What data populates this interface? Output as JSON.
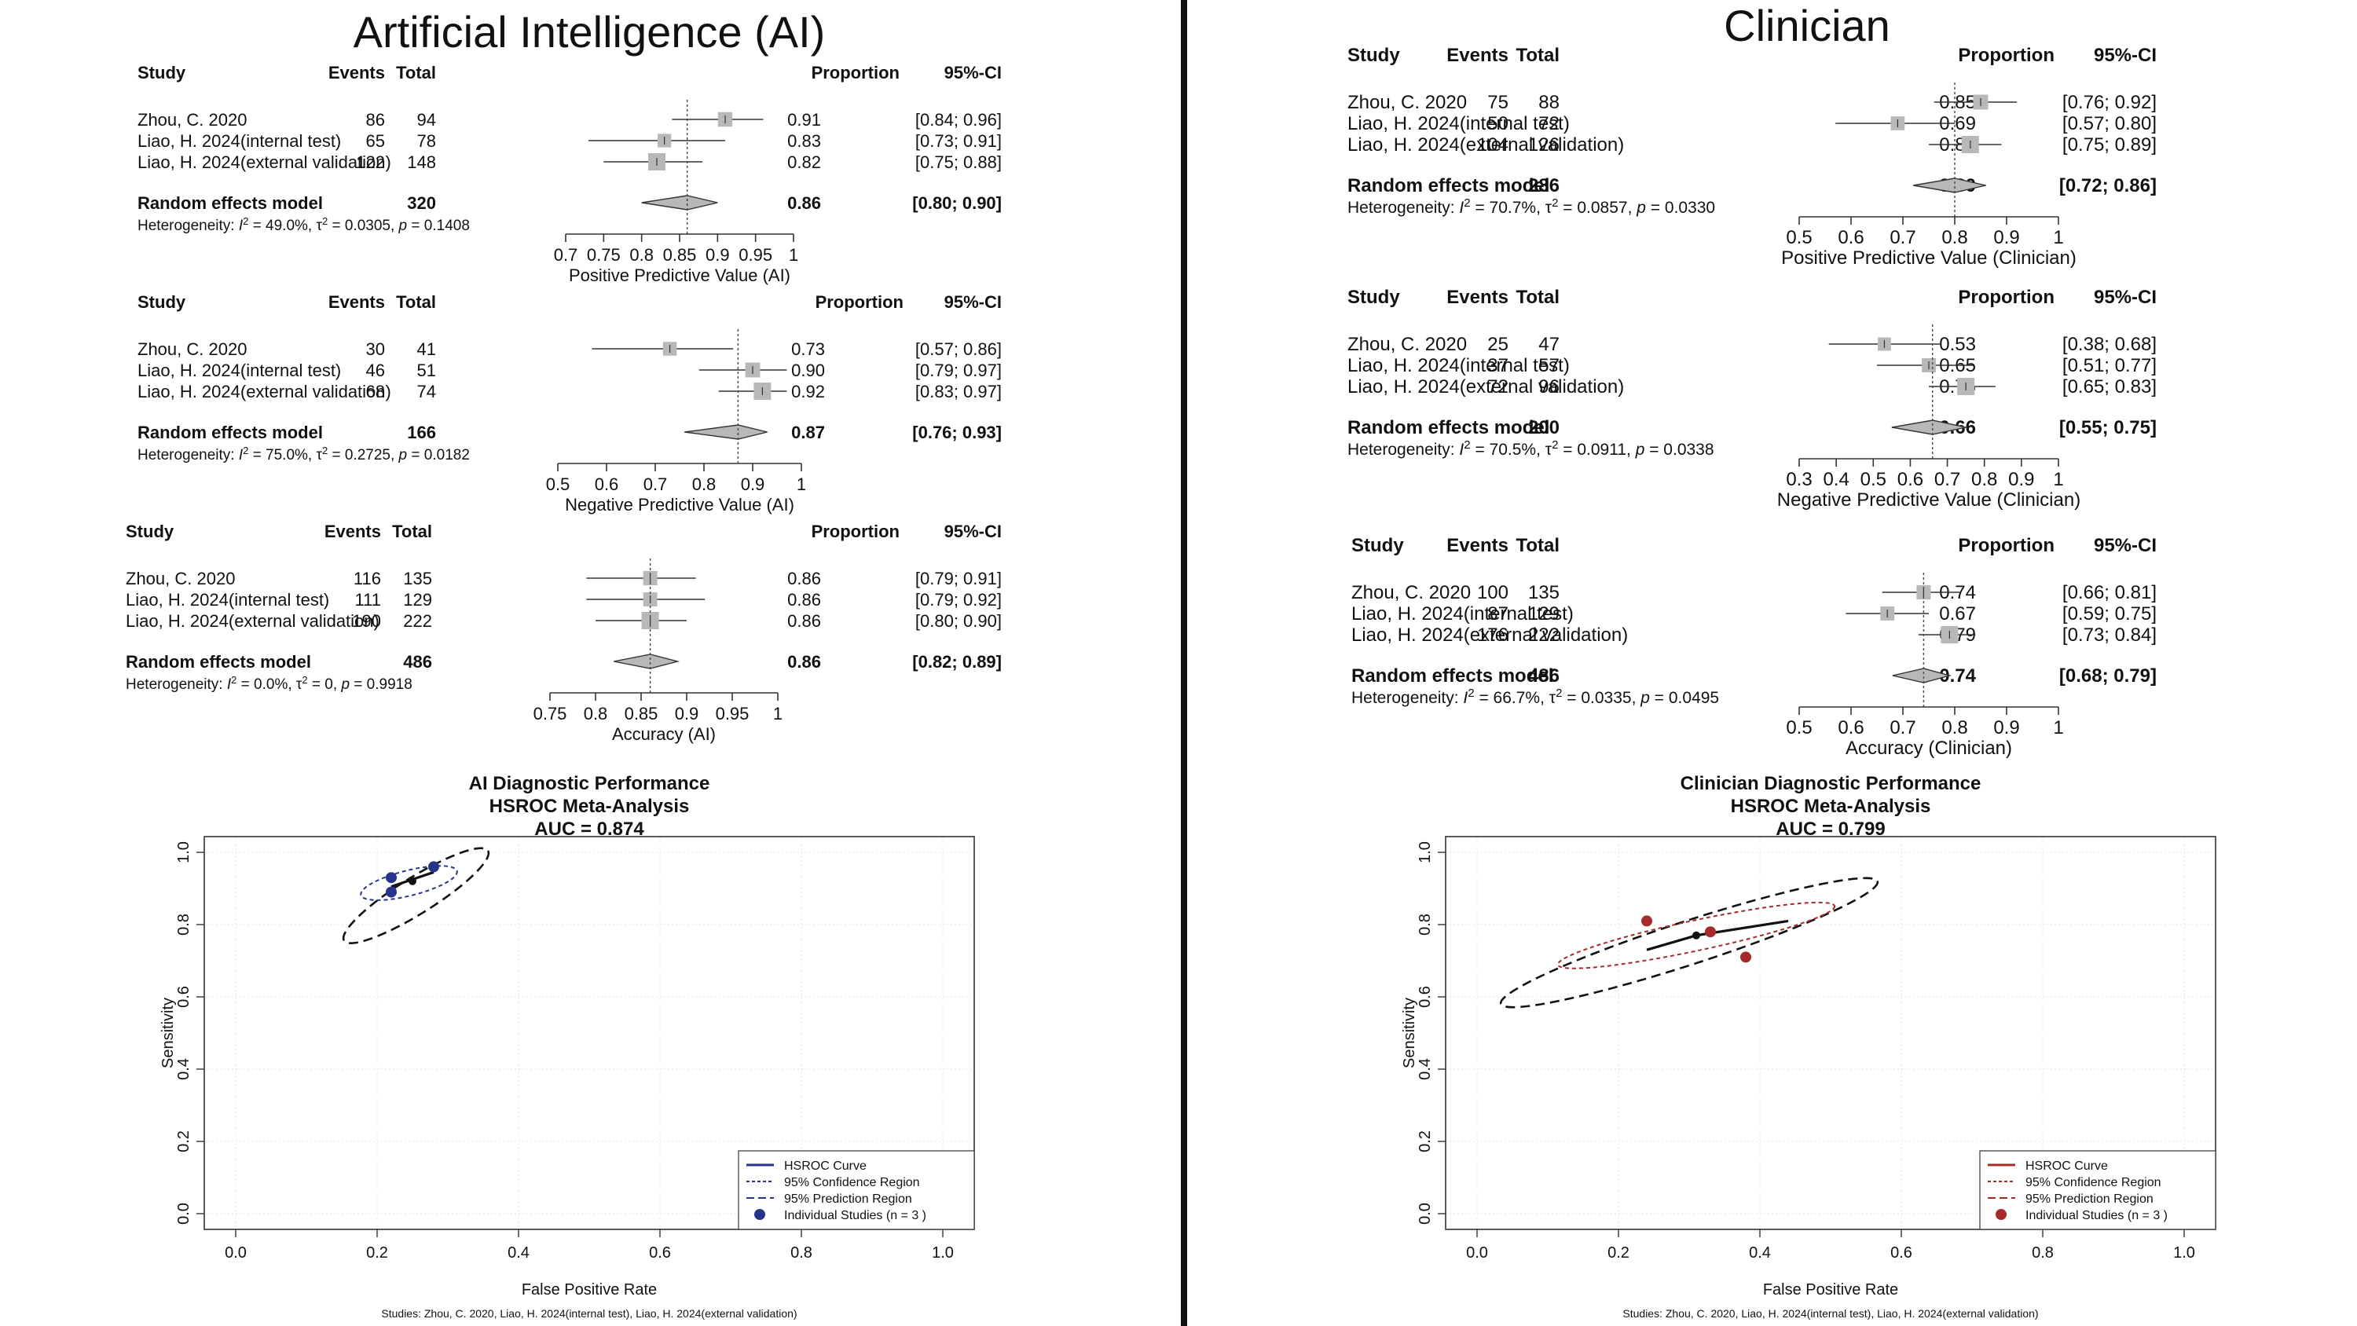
{
  "panels": {
    "ai": {
      "title": "Artificial Intelligence (AI)"
    },
    "clinician": {
      "title": "Clinician"
    }
  },
  "forest_header": {
    "study": "Study",
    "events": "Events",
    "total": "Total",
    "proportion": "Proportion",
    "ci": "95%-CI"
  },
  "chart_data": [
    {
      "type": "forest",
      "id": "ai-ppv",
      "xlabel": "Positive Predictive Value (AI)",
      "xticks": [
        0.7,
        0.75,
        0.8,
        0.85,
        0.9,
        0.95,
        1
      ],
      "xtick_labels": [
        "0.7",
        "0.75",
        "0.8",
        "0.85",
        "0.9",
        "0.95",
        "1"
      ],
      "xlim": [
        0.7,
        1
      ],
      "studies": [
        {
          "name": "Zhou, C. 2020",
          "events": "86",
          "total": "94",
          "prop": 0.91,
          "lo": 0.84,
          "hi": 0.96,
          "prop_text": "0.91",
          "ci_text": "[0.84; 0.96]"
        },
        {
          "name": "Liao, H. 2024(internal test)",
          "events": "65",
          "total": "78",
          "prop": 0.83,
          "lo": 0.73,
          "hi": 0.91,
          "prop_text": "0.83",
          "ci_text": "[0.73; 0.91]"
        },
        {
          "name": "Liao, H. 2024(external validation)",
          "events": "122",
          "total": "148",
          "prop": 0.82,
          "lo": 0.75,
          "hi": 0.88,
          "prop_text": "0.82",
          "ci_text": "[0.75; 0.88]"
        }
      ],
      "pooled": {
        "label": "Random effects model",
        "total": "320",
        "prop": 0.86,
        "lo": 0.8,
        "hi": 0.9,
        "prop_text": "0.86",
        "ci_text": "[0.80; 0.90]"
      },
      "heterogeneity": {
        "prefix": "Heterogeneity: ",
        "i2": "49.0%",
        "tau2": "0.0305",
        "p": "0.1408"
      }
    },
    {
      "type": "forest",
      "id": "ai-npv",
      "xlabel": "Negative Predictive Value (AI)",
      "xticks": [
        0.5,
        0.6,
        0.7,
        0.8,
        0.9,
        1
      ],
      "xtick_labels": [
        "0.5",
        "0.6",
        "0.7",
        "0.8",
        "0.9",
        "1"
      ],
      "xlim": [
        0.5,
        1
      ],
      "studies": [
        {
          "name": "Zhou, C. 2020",
          "events": "30",
          "total": "41",
          "prop": 0.73,
          "lo": 0.57,
          "hi": 0.86,
          "prop_text": "0.73",
          "ci_text": "[0.57; 0.86]"
        },
        {
          "name": "Liao, H. 2024(internal test)",
          "events": "46",
          "total": "51",
          "prop": 0.9,
          "lo": 0.79,
          "hi": 0.97,
          "prop_text": "0.90",
          "ci_text": "[0.79; 0.97]"
        },
        {
          "name": "Liao, H. 2024(external validation)",
          "events": "68",
          "total": "74",
          "prop": 0.92,
          "lo": 0.83,
          "hi": 0.97,
          "prop_text": "0.92",
          "ci_text": "[0.83; 0.97]"
        }
      ],
      "pooled": {
        "label": "Random effects model",
        "total": "166",
        "prop": 0.87,
        "lo": 0.76,
        "hi": 0.93,
        "prop_text": "0.87",
        "ci_text": "[0.76; 0.93]"
      },
      "heterogeneity": {
        "prefix": "Heterogeneity: ",
        "i2": "75.0%",
        "tau2": "0.2725",
        "p": "0.0182"
      }
    },
    {
      "type": "forest",
      "id": "ai-acc",
      "xlabel": "Accuracy (AI)",
      "xticks": [
        0.75,
        0.8,
        0.85,
        0.9,
        0.95,
        1
      ],
      "xtick_labels": [
        "0.75",
        "0.8",
        "0.85",
        "0.9",
        "0.95",
        "1"
      ],
      "xlim": [
        0.75,
        1
      ],
      "studies": [
        {
          "name": "Zhou, C. 2020",
          "events": "116",
          "total": "135",
          "prop": 0.86,
          "lo": 0.79,
          "hi": 0.91,
          "prop_text": "0.86",
          "ci_text": "[0.79; 0.91]"
        },
        {
          "name": "Liao, H. 2024(internal test)",
          "events": "111",
          "total": "129",
          "prop": 0.86,
          "lo": 0.79,
          "hi": 0.92,
          "prop_text": "0.86",
          "ci_text": "[0.79; 0.92]"
        },
        {
          "name": "Liao, H. 2024(external validation)",
          "events": "190",
          "total": "222",
          "prop": 0.86,
          "lo": 0.8,
          "hi": 0.9,
          "prop_text": "0.86",
          "ci_text": "[0.80; 0.90]"
        }
      ],
      "pooled": {
        "label": "Random effects model",
        "total": "486",
        "prop": 0.86,
        "lo": 0.82,
        "hi": 0.89,
        "prop_text": "0.86",
        "ci_text": "[0.82; 0.89]"
      },
      "heterogeneity": {
        "prefix": "Heterogeneity: ",
        "i2": "0.0%",
        "tau2": "0",
        "p": "0.9918"
      }
    },
    {
      "type": "forest",
      "id": "cl-ppv",
      "xlabel": "Positive Predictive Value (Clinician)",
      "xticks": [
        0.5,
        0.6,
        0.7,
        0.8,
        0.9,
        1
      ],
      "xtick_labels": [
        "0.5",
        "0.6",
        "0.7",
        "0.8",
        "0.9",
        "1"
      ],
      "xlim": [
        0.5,
        1
      ],
      "studies": [
        {
          "name": "Zhou, C. 2020",
          "events": "75",
          "total": "88",
          "prop": 0.85,
          "lo": 0.76,
          "hi": 0.92,
          "prop_text": "0.85",
          "ci_text": "[0.76; 0.92]"
        },
        {
          "name": "Liao, H. 2024(internal test)",
          "events": "50",
          "total": "72",
          "prop": 0.69,
          "lo": 0.57,
          "hi": 0.8,
          "prop_text": "0.69",
          "ci_text": "[0.57; 0.80]"
        },
        {
          "name": "Liao, H. 2024(external validation)",
          "events": "104",
          "total": "126",
          "prop": 0.83,
          "lo": 0.75,
          "hi": 0.89,
          "prop_text": "0.83",
          "ci_text": "[0.75; 0.89]"
        }
      ],
      "pooled": {
        "label": "Random effects model",
        "total": "286",
        "prop": 0.8,
        "lo": 0.72,
        "hi": 0.86,
        "prop_text": "0.80",
        "ci_text": "[0.72; 0.86]"
      },
      "heterogeneity": {
        "prefix": "Heterogeneity: ",
        "i2": "70.7%",
        "tau2": "0.0857",
        "p": "0.0330"
      }
    },
    {
      "type": "forest",
      "id": "cl-npv",
      "xlabel": "Negative Predictive Value (Clinician)",
      "xticks": [
        0.3,
        0.4,
        0.5,
        0.6,
        0.7,
        0.8,
        0.9,
        1
      ],
      "xtick_labels": [
        "0.3",
        "0.4",
        "0.5",
        "0.6",
        "0.7",
        "0.8",
        "0.9",
        "1"
      ],
      "xlim": [
        0.3,
        1
      ],
      "studies": [
        {
          "name": "Zhou, C. 2020",
          "events": "25",
          "total": "47",
          "prop": 0.53,
          "lo": 0.38,
          "hi": 0.68,
          "prop_text": "0.53",
          "ci_text": "[0.38; 0.68]"
        },
        {
          "name": "Liao, H. 2024(internal test)",
          "events": "37",
          "total": "57",
          "prop": 0.65,
          "lo": 0.51,
          "hi": 0.77,
          "prop_text": "0.65",
          "ci_text": "[0.51; 0.77]"
        },
        {
          "name": "Liao, H. 2024(external validation)",
          "events": "72",
          "total": "96",
          "prop": 0.75,
          "lo": 0.65,
          "hi": 0.83,
          "prop_text": "0.75",
          "ci_text": "[0.65; 0.83]"
        }
      ],
      "pooled": {
        "label": "Random effects model",
        "total": "200",
        "prop": 0.66,
        "lo": 0.55,
        "hi": 0.75,
        "prop_text": "0.66",
        "ci_text": "[0.55; 0.75]"
      },
      "heterogeneity": {
        "prefix": "Heterogeneity: ",
        "i2": "70.5%",
        "tau2": "0.0911",
        "p": "0.0338"
      }
    },
    {
      "type": "forest",
      "id": "cl-acc",
      "xlabel": "Accuracy (Clinician)",
      "xticks": [
        0.5,
        0.6,
        0.7,
        0.8,
        0.9,
        1
      ],
      "xtick_labels": [
        "0.5",
        "0.6",
        "0.7",
        "0.8",
        "0.9",
        "1"
      ],
      "xlim": [
        0.5,
        1
      ],
      "studies": [
        {
          "name": "Zhou, C. 2020",
          "events": "100",
          "total": "135",
          "prop": 0.74,
          "lo": 0.66,
          "hi": 0.81,
          "prop_text": "0.74",
          "ci_text": "[0.66; 0.81]"
        },
        {
          "name": "Liao, H. 2024(internal test)",
          "events": "87",
          "total": "129",
          "prop": 0.67,
          "lo": 0.59,
          "hi": 0.75,
          "prop_text": "0.67",
          "ci_text": "[0.59; 0.75]"
        },
        {
          "name": "Liao, H. 2024(external validation)",
          "events": "176",
          "total": "222",
          "prop": 0.79,
          "lo": 0.73,
          "hi": 0.84,
          "prop_text": "0.79",
          "ci_text": "[0.73; 0.84]"
        }
      ],
      "pooled": {
        "label": "Random effects model",
        "total": "486",
        "prop": 0.74,
        "lo": 0.68,
        "hi": 0.79,
        "prop_text": "0.74",
        "ci_text": "[0.68; 0.79]"
      },
      "heterogeneity": {
        "prefix": "Heterogeneity: ",
        "i2": "66.7%",
        "tau2": "0.0335",
        "p": "0.0495"
      }
    },
    {
      "type": "scatter",
      "id": "ai-hsroc",
      "title_lines": [
        "AI Diagnostic Performance",
        "HSROC Meta-Analysis",
        "AUC = 0.874"
      ],
      "xlabel": "False Positive Rate",
      "ylabel": "Sensitivity",
      "xlim": [
        0,
        1
      ],
      "ylim": [
        0,
        1
      ],
      "xticks": [
        0.0,
        0.2,
        0.4,
        0.6,
        0.8,
        1.0
      ],
      "yticks": [
        0.0,
        0.2,
        0.4,
        0.6,
        0.8,
        1.0
      ],
      "tick_labels": [
        "0.0",
        "0.2",
        "0.4",
        "0.6",
        "0.8",
        "1.0"
      ],
      "grid": true,
      "color": "#27348b",
      "points": [
        {
          "x": 0.22,
          "y": 0.93
        },
        {
          "x": 0.22,
          "y": 0.89
        },
        {
          "x": 0.28,
          "y": 0.96
        }
      ],
      "summary_point": {
        "x": 0.25,
        "y": 0.92
      },
      "hsroc_curve": [
        {
          "x": 0.22,
          "y": 0.905
        },
        {
          "x": 0.25,
          "y": 0.925
        },
        {
          "x": 0.28,
          "y": 0.945
        }
      ],
      "confidence_region": {
        "cx": 0.245,
        "cy": 0.915,
        "rx": 0.07,
        "ry": 0.035,
        "angle": 14
      },
      "prediction_region": {
        "cx": 0.255,
        "cy": 0.88,
        "rx": 0.12,
        "ry": 0.05,
        "angle": 32
      },
      "legend_position": "bottom-right",
      "legend": [
        "HSROC Curve",
        "95% Confidence Region",
        "95% Prediction Region",
        "Individual Studies (n = 3 )"
      ],
      "footer": "Studies: Zhou, C. 2020, Liao, H. 2024(internal test), Liao, H. 2024(external validation)"
    },
    {
      "type": "scatter",
      "id": "cl-hsroc",
      "title_lines": [
        "Clinician Diagnostic Performance",
        "HSROC Meta-Analysis",
        "AUC = 0.799"
      ],
      "xlabel": "False Positive Rate",
      "ylabel": "Sensitivity",
      "xlim": [
        0,
        1
      ],
      "ylim": [
        0,
        1
      ],
      "xticks": [
        0.0,
        0.2,
        0.4,
        0.6,
        0.8,
        1.0
      ],
      "yticks": [
        0.0,
        0.2,
        0.4,
        0.6,
        0.8,
        1.0
      ],
      "tick_labels": [
        "0.0",
        "0.2",
        "0.4",
        "0.6",
        "0.8",
        "1.0"
      ],
      "grid": true,
      "color": "#a52a2a",
      "points": [
        {
          "x": 0.24,
          "y": 0.81
        },
        {
          "x": 0.33,
          "y": 0.78
        },
        {
          "x": 0.38,
          "y": 0.71
        }
      ],
      "summary_point": {
        "x": 0.31,
        "y": 0.77
      },
      "hsroc_curve": [
        {
          "x": 0.24,
          "y": 0.73
        },
        {
          "x": 0.31,
          "y": 0.77
        },
        {
          "x": 0.44,
          "y": 0.81
        }
      ],
      "confidence_region": {
        "cx": 0.31,
        "cy": 0.77,
        "rx": 0.2,
        "ry": 0.042,
        "angle": 12
      },
      "prediction_region": {
        "cx": 0.3,
        "cy": 0.75,
        "rx": 0.28,
        "ry": 0.06,
        "angle": 18
      },
      "legend_position": "bottom-right",
      "legend": [
        "HSROC Curve",
        "95% Confidence Region",
        "95% Prediction Region",
        "Individual Studies (n = 3 )"
      ],
      "footer": "Studies: Zhou, C. 2020, Liao, H. 2024(internal test), Liao, H. 2024(external validation)"
    }
  ]
}
